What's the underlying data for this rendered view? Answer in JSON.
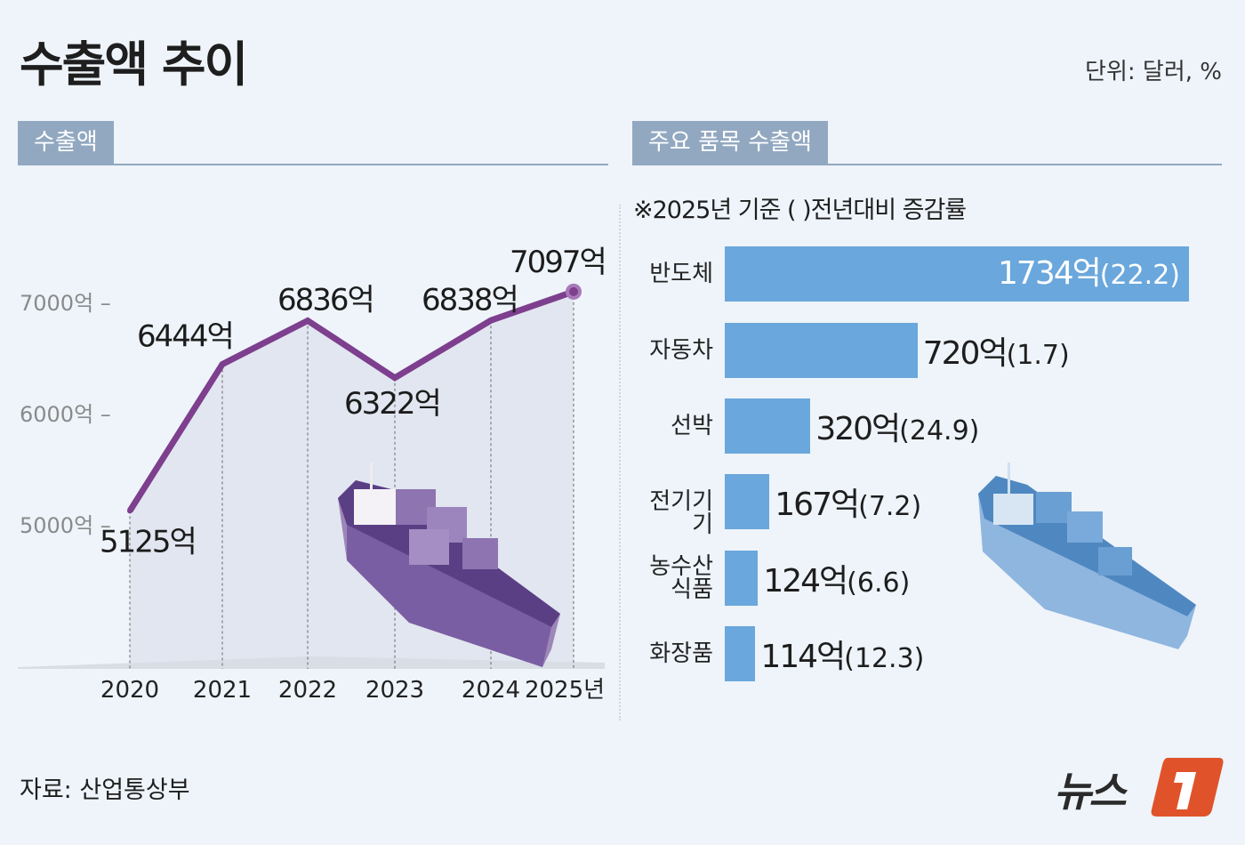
{
  "title": "수출액 추이",
  "unit": "단위: 달러, %",
  "left_section": {
    "label": "수출액"
  },
  "right_section": {
    "label": "주요 품목 수출액",
    "note": "※2025년 기준 ( )전년대비 증감률"
  },
  "source": "자료: 산업통상부",
  "logo": {
    "text": "뉴스1",
    "accent": "#e0532a"
  },
  "colors": {
    "line": "#7d3f8e",
    "bar": "#6aa7dc",
    "header": "#92a8c1",
    "background": "#eef4fa"
  },
  "chart_data": [
    {
      "type": "line",
      "categories": [
        "2020",
        "2021",
        "2022",
        "2023",
        "2024",
        "2025년"
      ],
      "values": [
        5125,
        6444,
        6836,
        6322,
        6838,
        7097
      ],
      "data_labels": [
        "5125억",
        "6444억",
        "6836억",
        "6322억",
        "6838억",
        "7097억"
      ],
      "y_ticks": [
        5000,
        6000,
        7000
      ],
      "y_tick_labels": [
        "5000억 –",
        "6000억 –",
        "7000억 –"
      ],
      "ylim": [
        4000,
        7300
      ],
      "grid": false
    },
    {
      "type": "bar",
      "orientation": "horizontal",
      "categories": [
        "반도체",
        "자동차",
        "선박",
        "전기기기",
        "농수산\n식품",
        "화장품"
      ],
      "values": [
        1734,
        720,
        320,
        167,
        124,
        114
      ],
      "changes": [
        22.2,
        1.7,
        24.9,
        7.2,
        6.6,
        12.3
      ],
      "value_labels": [
        "1734억",
        "720억",
        "320억",
        "167억",
        "124억",
        "114억"
      ],
      "change_labels": [
        "(22.2)",
        "(1.7)",
        "(24.9)",
        "(7.2)",
        "(6.6)",
        "(12.3)"
      ]
    }
  ]
}
